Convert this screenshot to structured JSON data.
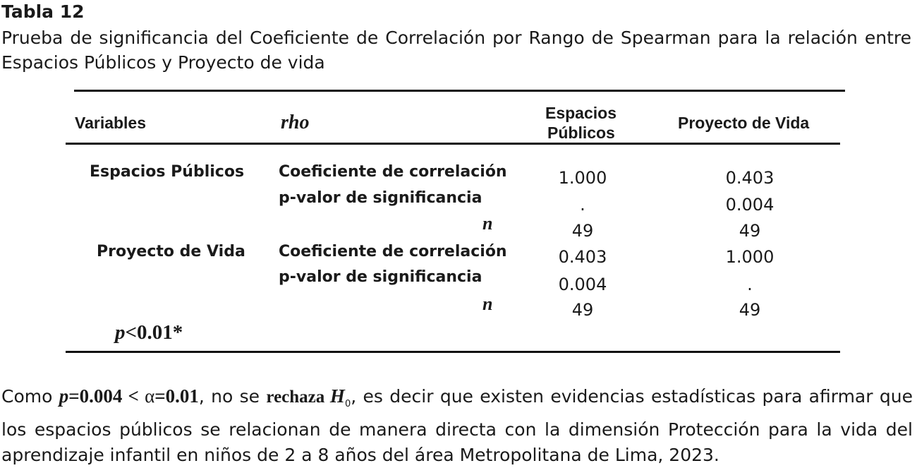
{
  "title": "Tabla 12",
  "subtitle": "Prueba de significancia del Coeficiente de Correlación por Rango de Spearman para la relación entre Espacios Públicos y Proyecto de vida",
  "table": {
    "headers": {
      "variables": "Variables",
      "rho": "rho",
      "espacios_line1": "Espacios",
      "espacios_line2": "Públicos",
      "proyecto": "Proyecto de Vida"
    },
    "groups": [
      {
        "variable": "Espacios Públicos",
        "coef_label": "Coeficiente de correlación",
        "p_label": "p-valor de significancia",
        "n_label": "n",
        "espacios": {
          "coef": "1.000",
          "p": ".",
          "n": "49"
        },
        "proyecto": {
          "coef": "0.403",
          "p": "0.004",
          "n": "49"
        }
      },
      {
        "variable": "Proyecto de Vida",
        "coef_label": "Coeficiente de correlación",
        "p_label": "p-valor de significancia",
        "n_label": "n",
        "espacios": {
          "coef": "0.403",
          "p": "0.004",
          "n": "49"
        },
        "proyecto": {
          "coef": "1.000",
          "p": ".",
          "n": "49"
        }
      }
    ],
    "footnote_p": "p",
    "footnote_rest": "<0.01*"
  },
  "conclusion": {
    "t1": "Como ",
    "p_sym": "p",
    "p_val": "=0.004 < ",
    "alpha_sym": "α",
    "alpha_val": "=0.01",
    "t2": ", no se ",
    "rechaza": "rechaza ",
    "h_sym": "H",
    "h_sub": "0",
    "t3": ", es decir que existen evidencias estadísticas para afirmar que los espacios públicos se relacionan de manera directa con la dimensión Protección para la vida del aprendizaje infantil en niños de 2 a 8 años del área Metropolitana de Lima, 2023."
  }
}
